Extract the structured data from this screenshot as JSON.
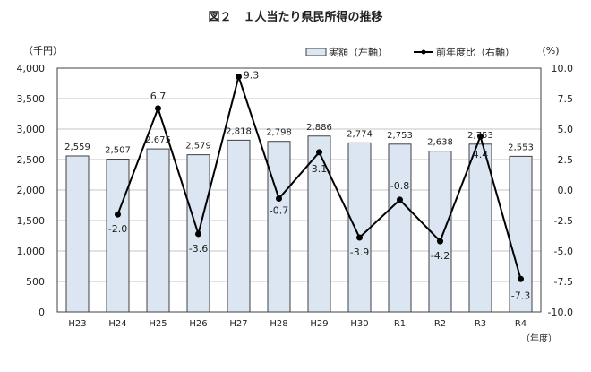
{
  "chart_data": {
    "type": "bar",
    "title": "図２　１人当たり県民所得の推移",
    "ylabel_left": "（千円）",
    "ylabel_right": "(%)",
    "xlabel": "（年度）",
    "categories": [
      "H23",
      "H24",
      "H25",
      "H26",
      "H27",
      "H28",
      "H29",
      "H30",
      "R1",
      "R2",
      "R3",
      "R4"
    ],
    "series": [
      {
        "name": "実額（左軸）",
        "type": "bar",
        "axis": "left",
        "values": [
          2559,
          2507,
          2675,
          2579,
          2818,
          2798,
          2886,
          2774,
          2753,
          2638,
          2753,
          2553
        ],
        "labels": [
          "2,559",
          "2,507",
          "2,675",
          "2,579",
          "2,818",
          "2,798",
          "2,886",
          "2,774",
          "2,753",
          "2,638",
          "2,753",
          "2,553"
        ]
      },
      {
        "name": "前年度比（右軸）",
        "type": "line",
        "axis": "right",
        "values": [
          null,
          -2.0,
          6.7,
          -3.6,
          9.3,
          -0.7,
          3.1,
          -3.9,
          -0.8,
          -4.2,
          4.4,
          -7.3
        ],
        "labels": [
          "",
          "-2.0",
          "6.7",
          "-3.6",
          "9.3",
          "-0.7",
          "3.1",
          "-3.9",
          "-0.8",
          "-4.2",
          "4.4",
          "-7.3"
        ]
      }
    ],
    "ylim_left": [
      0,
      4000
    ],
    "yticks_left": [
      "0",
      "500",
      "1,000",
      "1,500",
      "2,000",
      "2,500",
      "3,000",
      "3,500",
      "4,000"
    ],
    "ylim_right": [
      -10,
      10
    ],
    "yticks_right": [
      "-10.0",
      "-7.5",
      "-5.0",
      "-2.5",
      "0.0",
      "2.5",
      "5.0",
      "7.5",
      "10.0"
    ],
    "grid": true,
    "legend_placement": "top-right",
    "colors": {
      "bar_fill": "#dce6f2",
      "bar_stroke": "#404040",
      "line": "#000000",
      "grid": "#d9d9d9"
    }
  }
}
